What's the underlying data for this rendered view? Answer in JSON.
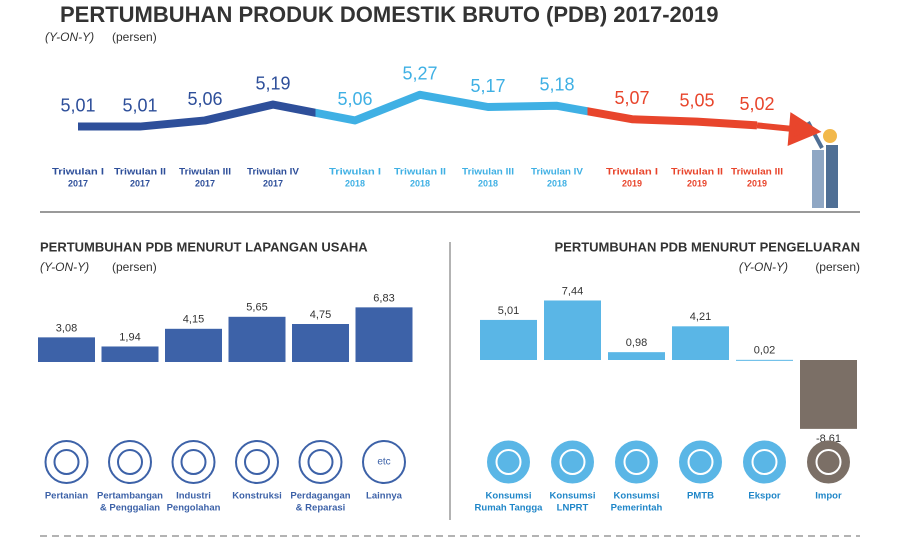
{
  "chart_data": [
    {
      "type": "line",
      "title": "PERTUMBUHAN PRODUK DOMESTIK BRUTO (PDB) 2017-2019",
      "subtitle": [
        "(Y-ON-Y)",
        "(persen)"
      ],
      "categories": [
        [
          "Triwulan I",
          "2017"
        ],
        [
          "Triwulan II",
          "2017"
        ],
        [
          "Triwulan III",
          "2017"
        ],
        [
          "Triwulan IV",
          "2017"
        ],
        [
          "Triwulan I",
          "2018"
        ],
        [
          "Triwulan II",
          "2018"
        ],
        [
          "Triwulan III",
          "2018"
        ],
        [
          "Triwulan IV",
          "2018"
        ],
        [
          "Triwulan I",
          "2019"
        ],
        [
          "Triwulan II",
          "2019"
        ],
        [
          "Triwulan III",
          "2019"
        ]
      ],
      "values": [
        5.01,
        5.01,
        5.06,
        5.19,
        5.06,
        5.27,
        5.17,
        5.18,
        5.07,
        5.05,
        5.02
      ],
      "value_labels": [
        "5,01",
        "5,01",
        "5,06",
        "5,19",
        "5,06",
        "5,27",
        "5,17",
        "5,18",
        "5,07",
        "5,05",
        "5,02"
      ],
      "colors": [
        "#2e4f9a",
        "#2e4f9a",
        "#2e4f9a",
        "#2e4f9a",
        "#3fb0e4",
        "#3fb0e4",
        "#3fb0e4",
        "#3fb0e4",
        "#e8452c",
        "#e8452c",
        "#e8452c"
      ],
      "ylim": [
        4.9,
        5.35
      ]
    },
    {
      "type": "bar",
      "title": "PERTUMBUHAN PDB MENURUT LAPANGAN USAHA",
      "subtitle": [
        "(Y-ON-Y)",
        "(persen)"
      ],
      "categories": [
        [
          "Pertanian"
        ],
        [
          "Pertambangan",
          "& Penggalian"
        ],
        [
          "Industri",
          "Pengolahan"
        ],
        [
          "Konstruksi"
        ],
        [
          "Perdagangan",
          "& Reparasi"
        ],
        [
          "Lainnya"
        ]
      ],
      "values": [
        3.08,
        1.94,
        4.15,
        5.65,
        4.75,
        6.83
      ],
      "value_labels": [
        "3,08",
        "1,94",
        "4,15",
        "5,65",
        "4,75",
        "6,83"
      ],
      "color": "#3d62a8",
      "ylim": [
        0,
        7.5
      ],
      "annotations": [
        "etc"
      ]
    },
    {
      "type": "bar",
      "title": "PERTUMBUHAN PDB MENURUT PENGELUARAN",
      "subtitle": [
        "(Y-ON-Y)",
        "(persen)"
      ],
      "categories": [
        [
          "Konsumsi",
          "Rumah Tangga"
        ],
        [
          "Konsumsi",
          "LNPRT"
        ],
        [
          "Konsumsi",
          "Pemerintah"
        ],
        [
          "PMTB"
        ],
        [
          "Ekspor"
        ],
        [
          "Impor"
        ]
      ],
      "values": [
        5.01,
        7.44,
        0.98,
        4.21,
        0.02,
        -8.61
      ],
      "value_labels": [
        "5,01",
        "7,44",
        "0,98",
        "4,21",
        "0,02",
        "-8,61"
      ],
      "colors": [
        "#5ab6e6",
        "#5ab6e6",
        "#5ab6e6",
        "#5ab6e6",
        "#5ab6e6",
        "#7b6f66"
      ],
      "ylim": [
        -9,
        8
      ]
    }
  ]
}
